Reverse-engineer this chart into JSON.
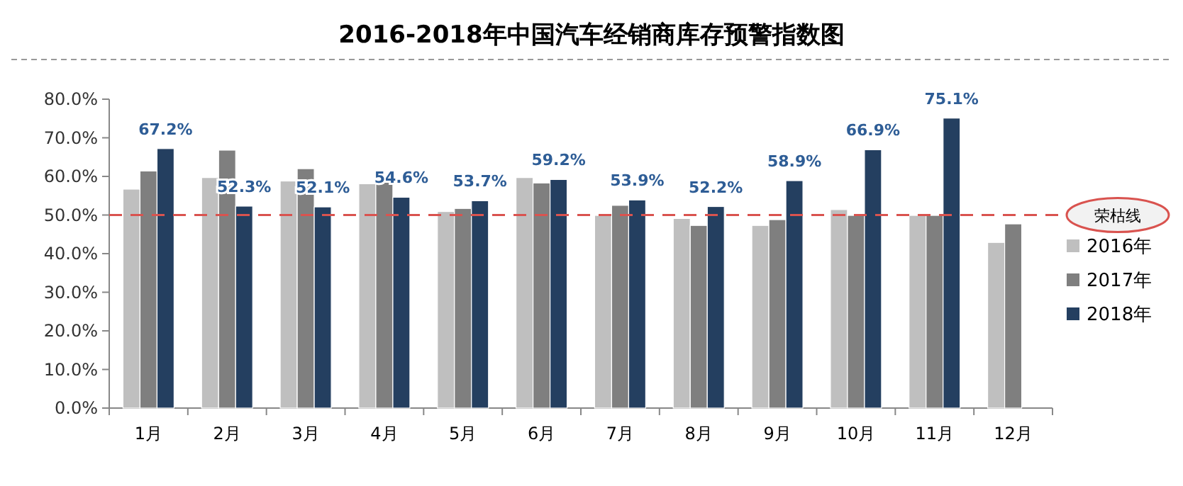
{
  "chart_data": {
    "type": "bar",
    "title": "2016-2018年中国汽车经销商库存预警指数图",
    "categories": [
      "1月",
      "2月",
      "3月",
      "4月",
      "5月",
      "6月",
      "7月",
      "8月",
      "9月",
      "10月",
      "11月",
      "12月"
    ],
    "series": [
      {
        "name": "2016年",
        "color": "#bfbfbf",
        "values": [
          56.7,
          59.7,
          58.8,
          58.1,
          50.9,
          59.7,
          49.9,
          49.1,
          47.3,
          51.4,
          49.9,
          42.9
        ]
      },
      {
        "name": "2017年",
        "color": "#7f7f7f",
        "values": [
          61.4,
          66.8,
          62.0,
          59.1,
          51.7,
          58.3,
          52.5,
          47.3,
          48.8,
          49.9,
          49.9,
          47.7
        ]
      },
      {
        "name": "2018年",
        "color": "#243f60",
        "values": [
          67.2,
          52.3,
          52.1,
          54.6,
          53.7,
          59.2,
          53.9,
          52.2,
          58.9,
          66.9,
          75.1,
          null
        ],
        "value_labels": [
          "67.2%",
          "52.3%",
          "52.1%",
          "54.6%",
          "53.7%",
          "59.2%",
          "53.9%",
          "52.2%",
          "58.9%",
          "66.9%",
          "75.1%",
          null
        ]
      }
    ],
    "ylim": [
      0,
      80
    ],
    "yticks": [
      {
        "value": 0,
        "label": "0.0%"
      },
      {
        "value": 10,
        "label": "10.0%"
      },
      {
        "value": 20,
        "label": "20.0%"
      },
      {
        "value": 30,
        "label": "30.0%"
      },
      {
        "value": 40,
        "label": "40.0%"
      },
      {
        "value": 50,
        "label": "50.0%"
      },
      {
        "value": 60,
        "label": "60.0%"
      },
      {
        "value": 70,
        "label": "70.0%"
      },
      {
        "value": 80,
        "label": "80.0%"
      }
    ],
    "ref_lines": [
      {
        "axis": "y",
        "value": 50,
        "label": "荣枯线",
        "color": "#d9534f",
        "line_style": "dashed"
      }
    ],
    "legend": "right",
    "grid": false
  }
}
